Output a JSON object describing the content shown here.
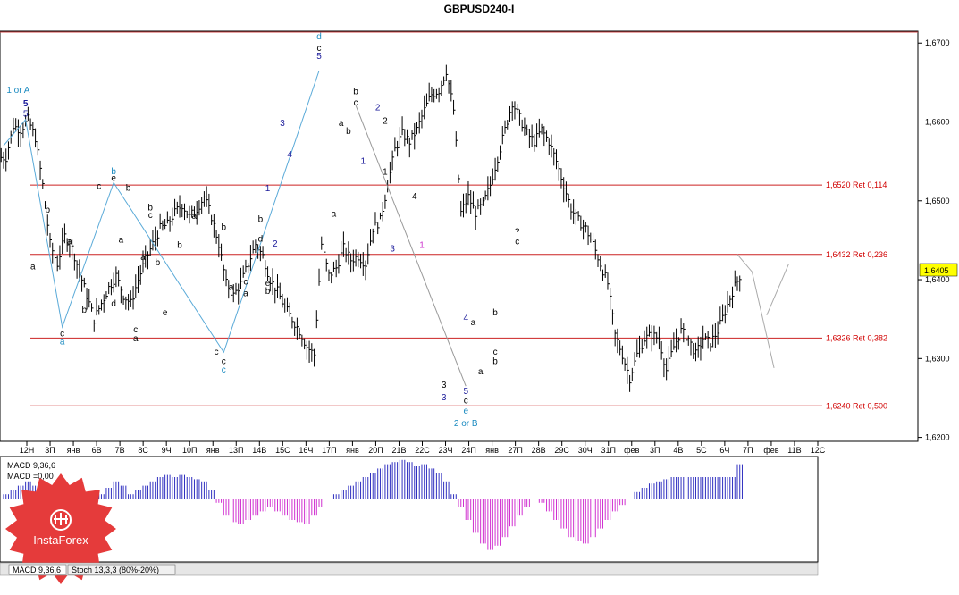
{
  "chart_data": {
    "type": "candlestick",
    "title": "GBPUSD240-I",
    "current_price": "1,6405",
    "ylim": [
      1.6195,
      1.6715
    ],
    "y_ticks": [
      "1,6700",
      "1,6600",
      "1,6500",
      "1,6400",
      "1,6300",
      "1,6200"
    ],
    "y_tick_values": [
      1.67,
      1.66,
      1.65,
      1.64,
      1.63,
      1.62
    ],
    "x_ticks": [
      "12Н",
      "3П",
      "янв",
      "6В",
      "7В",
      "8С",
      "9Ч",
      "10П",
      "янв",
      "13П",
      "14В",
      "15С",
      "16Ч",
      "17П",
      "янв",
      "20П",
      "21В",
      "22С",
      "23Ч",
      "24П",
      "янв",
      "27П",
      "28В",
      "29С",
      "30Ч",
      "31П",
      "фев",
      "3П",
      "4В",
      "5С",
      "6Ч",
      "7П",
      "фев",
      "11В",
      "12С"
    ],
    "grid": false,
    "retracement_levels": [
      {
        "price": 1.66,
        "label": ""
      },
      {
        "price": 1.652,
        "label": "1,6520 Ret 0,114"
      },
      {
        "price": 1.6432,
        "label": "1,6432 Ret 0,236"
      },
      {
        "price": 1.6326,
        "label": "1,6326 Ret 0,382"
      },
      {
        "price": 1.624,
        "label": "1,6240 Ret 0,500"
      }
    ],
    "price_path": [
      1.6555,
      1.6595,
      1.659,
      1.6603,
      1.658,
      1.652,
      1.6445,
      1.642,
      1.6455,
      1.644,
      1.641,
      1.638,
      1.635,
      1.637,
      1.639,
      1.6405,
      1.638,
      1.637,
      1.64,
      1.6425,
      1.6445,
      1.6465,
      1.647,
      1.6485,
      1.6495,
      1.648,
      1.649,
      1.6505,
      1.648,
      1.6445,
      1.6395,
      1.638,
      1.6395,
      1.642,
      1.6445,
      1.643,
      1.64,
      1.6385,
      1.6365,
      1.635,
      1.6335,
      1.6315,
      1.6305,
      1.6445,
      1.6405,
      1.6415,
      1.644,
      1.6425,
      1.643,
      1.642,
      1.6465,
      1.6475,
      1.652,
      1.6565,
      1.6585,
      1.6575,
      1.659,
      1.6615,
      1.6635,
      1.664,
      1.6665,
      1.6615,
      1.6485,
      1.6505,
      1.6485,
      1.6495,
      1.652,
      1.6555,
      1.659,
      1.6625,
      1.6605,
      1.6585,
      1.6575,
      1.659,
      1.6575,
      1.655,
      1.652,
      1.649,
      1.6475,
      1.6465,
      1.6445,
      1.642,
      1.6395,
      1.633,
      1.6305,
      1.6275,
      1.6305,
      1.6325,
      1.633,
      1.6325,
      1.6285,
      1.6315,
      1.6335,
      1.6325,
      1.6305,
      1.6325,
      1.632,
      1.6335,
      1.636,
      1.6385,
      1.6405
    ],
    "series": [
      {
        "values": [
          0.2,
          0.4,
          0.6,
          0.8,
          0.6,
          -0.2,
          -0.8,
          -1.4,
          -1.2,
          -1.0,
          -0.8,
          -0.5,
          -0.2,
          0.2,
          0.5,
          0.8,
          0.6,
          0.2,
          0.4,
          0.6,
          0.8,
          1.0,
          1.1,
          1.0,
          1.1,
          1.0,
          0.9,
          0.8,
          0.4,
          -0.2,
          -0.8,
          -1.1,
          -1.2,
          -1.0,
          -0.8,
          -0.6,
          -0.4,
          -0.6,
          -0.8,
          -1.0,
          -1.1,
          -1.2,
          -0.8,
          -0.4,
          0.0,
          0.2,
          0.4,
          0.6,
          0.8,
          1.0,
          1.2,
          1.4,
          1.6,
          1.7,
          1.8,
          1.7,
          1.5,
          1.6,
          1.4,
          1.2,
          0.8,
          0.2,
          -0.4,
          -1.0,
          -1.6,
          -2.1,
          -2.4,
          -2.2,
          -1.8,
          -1.3,
          -0.8,
          -0.4,
          0.0,
          -0.2,
          -0.6,
          -1.0,
          -1.4,
          -1.8,
          -2.0,
          -2.1,
          -1.8,
          -1.4,
          -1.0,
          -0.6,
          -0.3,
          0.0,
          0.3,
          0.5,
          0.7,
          0.8,
          0.9,
          1.0,
          1.0,
          1.0,
          1.0,
          1.0,
          1.0,
          1.0,
          1.0,
          1.0,
          1.6
        ]
      }
    ],
    "indicator_labels": [
      "MACD 9,36,6",
      "MACD =0,00"
    ],
    "indicator_tabs": [
      "MACD 9,36,6",
      "Stoch 13,3,3 (80%-20%)"
    ],
    "watermark": "InstaForex",
    "wave_labels": [
      {
        "text": "5",
        "color": "#1a1a9a",
        "bar": 3,
        "price": 1.6607
      },
      {
        "text": "5",
        "color": "#1a1a9a",
        "bar": 3,
        "price": 1.662
      },
      {
        "text": "1 or A",
        "color": "#1a8ac0",
        "bar": 2,
        "price": 1.6637
      },
      {
        "text": "a",
        "color": "#000000",
        "bar": 4,
        "price": 1.6413
      },
      {
        "text": "b",
        "color": "#000000",
        "bar": 6,
        "price": 1.6485
      },
      {
        "text": "a",
        "color": "#000000",
        "bar": 9,
        "price": 1.6445
      },
      {
        "text": "c",
        "color": "#000000",
        "bar": 8,
        "price": 1.6328
      },
      {
        "text": "a",
        "color": "#1a8ac0",
        "bar": 8,
        "price": 1.6318
      },
      {
        "text": "b",
        "color": "#000000",
        "bar": 11,
        "price": 1.6358
      },
      {
        "text": "c",
        "color": "#000000",
        "bar": 13,
        "price": 1.6515
      },
      {
        "text": "b",
        "color": "#1a8ac0",
        "bar": 15,
        "price": 1.6534
      },
      {
        "text": "e",
        "color": "#000000",
        "bar": 15,
        "price": 1.6525
      },
      {
        "text": "b",
        "color": "#000000",
        "bar": 17,
        "price": 1.6513
      },
      {
        "text": "a",
        "color": "#000000",
        "bar": 16,
        "price": 1.6447
      },
      {
        "text": "d",
        "color": "#000000",
        "bar": 15,
        "price": 1.6366
      },
      {
        "text": "b",
        "color": "#000000",
        "bar": 20,
        "price": 1.6488
      },
      {
        "text": "c",
        "color": "#000000",
        "bar": 20,
        "price": 1.6478
      },
      {
        "text": "a",
        "color": "#000000",
        "bar": 19,
        "price": 1.6425
      },
      {
        "text": "c",
        "color": "#000000",
        "bar": 18,
        "price": 1.6333
      },
      {
        "text": "a",
        "color": "#000000",
        "bar": 18,
        "price": 1.6322
      },
      {
        "text": "b",
        "color": "#000000",
        "bar": 21,
        "price": 1.6418
      },
      {
        "text": "e",
        "color": "#000000",
        "bar": 22,
        "price": 1.6355
      },
      {
        "text": "b",
        "color": "#000000",
        "bar": 24,
        "price": 1.644
      },
      {
        "text": "a",
        "color": "#000000",
        "bar": 26,
        "price": 1.6477
      },
      {
        "text": "b",
        "color": "#000000",
        "bar": 30,
        "price": 1.6463
      },
      {
        "text": "c",
        "color": "#000000",
        "bar": 29,
        "price": 1.6305
      },
      {
        "text": "c",
        "color": "#000000",
        "bar": 30,
        "price": 1.6293
      },
      {
        "text": "c",
        "color": "#1a8ac0",
        "bar": 30,
        "price": 1.6282
      },
      {
        "text": "a",
        "color": "#000000",
        "bar": 31,
        "price": 1.6387
      },
      {
        "text": "c",
        "color": "#000000",
        "bar": 33,
        "price": 1.6394
      },
      {
        "text": "a",
        "color": "#000000",
        "bar": 33,
        "price": 1.6379
      },
      {
        "text": "b",
        "color": "#000000",
        "bar": 35,
        "price": 1.6473
      },
      {
        "text": "d",
        "color": "#000000",
        "bar": 35,
        "price": 1.6448
      },
      {
        "text": "e",
        "color": "#000000",
        "bar": 36,
        "price": 1.6392
      },
      {
        "text": "b",
        "color": "#000000",
        "bar": 36,
        "price": 1.6382
      },
      {
        "text": "1",
        "color": "#1a1a9a",
        "bar": 36,
        "price": 1.6512
      },
      {
        "text": "2",
        "color": "#1a1a9a",
        "bar": 37,
        "price": 1.6442
      },
      {
        "text": "3",
        "color": "#1a1a9a",
        "bar": 38,
        "price": 1.6595
      },
      {
        "text": "4",
        "color": "#1a1a9a",
        "bar": 39,
        "price": 1.6555
      },
      {
        "text": "5",
        "color": "#1a1a9a",
        "bar": 43,
        "price": 1.668
      },
      {
        "text": "c",
        "color": "#000000",
        "bar": 43,
        "price": 1.669
      },
      {
        "text": "d",
        "color": "#1a8ac0",
        "bar": 43,
        "price": 1.6705
      },
      {
        "text": "a",
        "color": "#000000",
        "bar": 45,
        "price": 1.648
      },
      {
        "text": "a",
        "color": "#000000",
        "bar": 46,
        "price": 1.6595
      },
      {
        "text": "b",
        "color": "#000000",
        "bar": 47,
        "price": 1.6585
      },
      {
        "text": "b",
        "color": "#000000",
        "bar": 48,
        "price": 1.6635
      },
      {
        "text": "c",
        "color": "#000000",
        "bar": 48,
        "price": 1.6621
      },
      {
        "text": "1",
        "color": "#1a1a9a",
        "bar": 49,
        "price": 1.6547
      },
      {
        "text": "2",
        "color": "#1a1a9a",
        "bar": 51,
        "price": 1.6615
      },
      {
        "text": "2",
        "color": "#000000",
        "bar": 52,
        "price": 1.6598
      },
      {
        "text": "1",
        "color": "#000000",
        "bar": 52,
        "price": 1.6533
      },
      {
        "text": "3",
        "color": "#1a1a9a",
        "bar": 53,
        "price": 1.6436
      },
      {
        "text": "4",
        "color": "#000000",
        "bar": 56,
        "price": 1.6502
      },
      {
        "text": "1",
        "color": "#cc33cc",
        "bar": 57,
        "price": 1.644
      },
      {
        "text": "3",
        "color": "#000000",
        "bar": 60,
        "price": 1.6263
      },
      {
        "text": "3",
        "color": "#1a1a9a",
        "bar": 60,
        "price": 1.6247
      },
      {
        "text": "4",
        "color": "#1a1a9a",
        "bar": 63,
        "price": 1.6348
      },
      {
        "text": "a",
        "color": "#000000",
        "bar": 64,
        "price": 1.6342
      },
      {
        "text": "5",
        "color": "#1a1a9a",
        "bar": 63,
        "price": 1.6255
      },
      {
        "text": "c",
        "color": "#000000",
        "bar": 63,
        "price": 1.6243
      },
      {
        "text": "e",
        "color": "#1a8ac0",
        "bar": 63,
        "price": 1.623
      },
      {
        "text": "2 or B",
        "color": "#1a8ac0",
        "bar": 63,
        "price": 1.6214
      },
      {
        "text": "b",
        "color": "#000000",
        "bar": 67,
        "price": 1.6355
      },
      {
        "text": "a",
        "color": "#000000",
        "bar": 65,
        "price": 1.628
      },
      {
        "text": "c",
        "color": "#000000",
        "bar": 67,
        "price": 1.6305
      },
      {
        "text": "b",
        "color": "#000000",
        "bar": 67,
        "price": 1.6293
      },
      {
        "text": "?",
        "color": "#000000",
        "bar": 70,
        "price": 1.6457
      },
      {
        "text": "c",
        "color": "#000000",
        "bar": 70,
        "price": 1.6445
      }
    ]
  }
}
